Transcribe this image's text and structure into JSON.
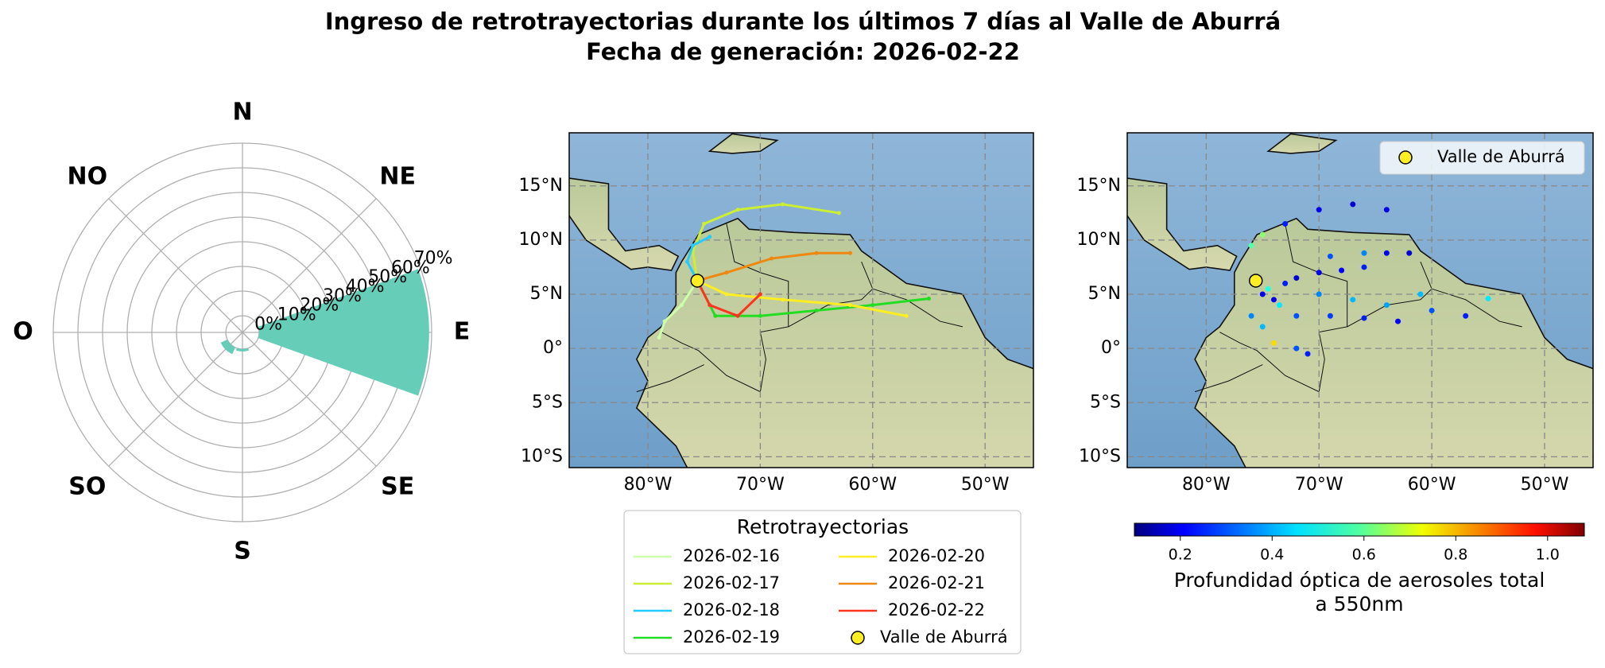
{
  "title": "Ingreso de retrotrayectorias durante los últimos 7 días al Valle de Aburrá",
  "subtitle": "Fecha de generación: 2026-02-22",
  "chart_data": [
    {
      "type": "polar_bar",
      "categories": [
        "N",
        "NE",
        "E",
        "SE",
        "S",
        "SO",
        "O",
        "NO"
      ],
      "values": [
        0,
        0,
        69,
        0,
        1,
        3,
        0,
        0
      ],
      "color": "#66cdb8",
      "rlim": [
        0,
        70
      ],
      "rticks": [
        {
          "value": 0,
          "label": "0%"
        },
        {
          "value": 10,
          "label": "10%"
        },
        {
          "value": 20,
          "label": "20%"
        },
        {
          "value": 30,
          "label": "30%"
        },
        {
          "value": 40,
          "label": "40%"
        },
        {
          "value": 50,
          "label": "50%"
        },
        {
          "value": 60,
          "label": "60%"
        },
        {
          "value": 70,
          "label": "70%"
        }
      ],
      "grid": true
    },
    {
      "type": "map_lines",
      "xlim": [
        -87,
        -45.7
      ],
      "ylim": [
        -11,
        19.9
      ],
      "xticks": [
        {
          "value": -80,
          "label": "80°W"
        },
        {
          "value": -70,
          "label": "70°W"
        },
        {
          "value": -60,
          "label": "60°W"
        },
        {
          "value": -50,
          "label": "50°W"
        }
      ],
      "yticks": [
        {
          "value": 15,
          "label": "15°N"
        },
        {
          "value": 10,
          "label": "10°N"
        },
        {
          "value": 5,
          "label": "5°N"
        },
        {
          "value": 0,
          "label": "0°"
        },
        {
          "value": -5,
          "label": "5°S"
        },
        {
          "value": -10,
          "label": "10°S"
        }
      ],
      "grid": true,
      "legend_title": "Retrotrayectorias",
      "series": [
        {
          "name": "2026-02-16",
          "color": "#ccffaa",
          "x": [
            -75.6,
            -77,
            -78.5,
            -79
          ],
          "y": [
            6.25,
            4,
            2.5,
            1
          ]
        },
        {
          "name": "2026-02-17",
          "color": "#ccee33",
          "x": [
            -75.6,
            -76,
            -75,
            -72,
            -68,
            -63
          ],
          "y": [
            6.25,
            9,
            11.5,
            12.8,
            13.3,
            12.5
          ]
        },
        {
          "name": "2026-02-18",
          "color": "#22ccff",
          "x": [
            -75.6,
            -76.5,
            -76,
            -74.5
          ],
          "y": [
            6.25,
            8,
            9.5,
            10.3
          ]
        },
        {
          "name": "2026-02-19",
          "color": "#22dd22",
          "x": [
            -75.6,
            -74,
            -70,
            -65,
            -60,
            -55
          ],
          "y": [
            6.25,
            3,
            3,
            3.5,
            4,
            4.6
          ]
        },
        {
          "name": "2026-02-20",
          "color": "#ffee22",
          "x": [
            -75.6,
            -73,
            -68,
            -62,
            -57
          ],
          "y": [
            6.25,
            5,
            4.5,
            4,
            3
          ]
        },
        {
          "name": "2026-02-21",
          "color": "#ee8811",
          "x": [
            -75.6,
            -73,
            -69,
            -65,
            -62
          ],
          "y": [
            6.25,
            7,
            8.3,
            8.8,
            8.8
          ]
        },
        {
          "name": "2026-02-22",
          "color": "#ff3322",
          "x": [
            -75.6,
            -74.5,
            -72,
            -70
          ],
          "y": [
            6.25,
            4,
            3,
            5
          ]
        }
      ],
      "marker": {
        "name": "Valle de Aburrá",
        "x": -75.6,
        "y": 6.25,
        "color": "#ffee22"
      }
    },
    {
      "type": "map_scatter",
      "xlim": [
        -87,
        -45.7
      ],
      "ylim": [
        -11,
        19.9
      ],
      "xticks": [
        {
          "value": -80,
          "label": "80°W"
        },
        {
          "value": -70,
          "label": "70°W"
        },
        {
          "value": -60,
          "label": "60°W"
        },
        {
          "value": -50,
          "label": "50°W"
        }
      ],
      "yticks": [
        {
          "value": 15,
          "label": "15°N"
        },
        {
          "value": 10,
          "label": "10°N"
        },
        {
          "value": 5,
          "label": "5°N"
        },
        {
          "value": 0,
          "label": "0°"
        },
        {
          "value": -5,
          "label": "5°S"
        },
        {
          "value": -10,
          "label": "10°S"
        }
      ],
      "grid": true,
      "x": [
        -75,
        -74,
        -73,
        -72,
        -70,
        -68,
        -66,
        -64,
        -62,
        -70,
        -67,
        -64,
        -60,
        -57,
        -55,
        -72,
        -69,
        -66,
        -63,
        -76,
        -75,
        -73,
        -70,
        -67,
        -64,
        -76,
        -75,
        -74,
        -72,
        -71,
        -74.5,
        -73.5,
        -69,
        -66,
        -61
      ],
      "y": [
        5,
        4.5,
        6,
        6.5,
        7,
        7.2,
        7.5,
        8.8,
        8.8,
        5,
        4.5,
        4,
        3.5,
        3,
        4.6,
        3,
        3,
        2.8,
        2.5,
        9.5,
        10.5,
        11.5,
        12.8,
        13.3,
        12.8,
        3,
        2,
        0.5,
        0,
        -0.5,
        5.5,
        4,
        8.5,
        8.8,
        5
      ],
      "values": [
        0.22,
        0.2,
        0.25,
        0.18,
        0.2,
        0.22,
        0.25,
        0.2,
        0.18,
        0.35,
        0.4,
        0.38,
        0.3,
        0.25,
        0.45,
        0.3,
        0.28,
        0.25,
        0.22,
        0.55,
        0.6,
        0.25,
        0.2,
        0.18,
        0.2,
        0.35,
        0.4,
        0.75,
        0.3,
        0.25,
        0.5,
        0.45,
        0.3,
        0.35,
        0.4
      ],
      "clim": [
        0.1,
        1.08
      ],
      "cticks": [
        0.2,
        0.4,
        0.6,
        0.8,
        {
          "value": 1,
          "label": "1.0"
        }
      ],
      "colorbar_label": [
        "Profundidad óptica de aerosoles total",
        "a 550nm"
      ],
      "marker": {
        "name": "Valle de Aburrá",
        "x": -75.6,
        "y": 6.25,
        "color": "#ffee22"
      }
    }
  ]
}
